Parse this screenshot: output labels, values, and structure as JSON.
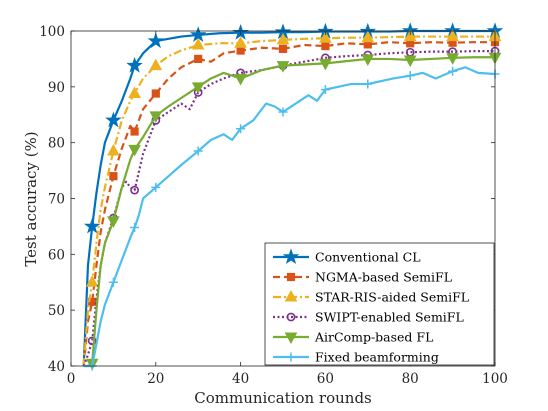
{
  "chart_data": {
    "type": "line",
    "xlabel": "Communication rounds",
    "ylabel": "Test accuracy (%)",
    "xlim": [
      0,
      100
    ],
    "ylim": [
      40,
      100
    ],
    "xticks": [
      "0",
      "20",
      "40",
      "60",
      "80",
      "100"
    ],
    "yticks": [
      "40",
      "50",
      "60",
      "70",
      "80",
      "90",
      "100"
    ],
    "grid": false,
    "legend_position": "bottom-right",
    "series": [
      {
        "name": "Conventional CL",
        "color": "#0072BD",
        "dash": "solid",
        "marker": "star",
        "x": [
          3,
          4,
          5,
          6,
          7,
          8,
          9,
          10,
          12,
          14,
          15,
          17,
          20,
          23,
          26,
          30,
          35,
          40,
          45,
          50,
          55,
          60,
          65,
          70,
          75,
          80,
          85,
          90,
          95,
          100
        ],
        "y": [
          40,
          58,
          65,
          71,
          76,
          80,
          82,
          84,
          87.5,
          91.5,
          93.8,
          96,
          98.2,
          98.6,
          99,
          99.3,
          99.6,
          99.7,
          99.7,
          99.8,
          99.8,
          99.9,
          99.9,
          99.9,
          99.9,
          100,
          100,
          100,
          100,
          100
        ],
        "marker_x": [
          5,
          10,
          15,
          20,
          30,
          40,
          50,
          60,
          70,
          80,
          90,
          100
        ],
        "marker_y": [
          65,
          84,
          93.8,
          98.2,
          99.3,
          99.7,
          99.8,
          99.9,
          99.9,
          100,
          100,
          100
        ]
      },
      {
        "name": "NGMA-based SemiFL",
        "color": "#D95319",
        "dash": "dashed",
        "marker": "square",
        "x": [
          3,
          4,
          5,
          6,
          7,
          8,
          10,
          12,
          14,
          15,
          17,
          20,
          23,
          26,
          30,
          33,
          36,
          40,
          45,
          50,
          55,
          60,
          65,
          70,
          75,
          80,
          85,
          90,
          95,
          100
        ],
        "y": [
          40,
          48,
          51.5,
          58,
          64,
          68,
          74,
          79,
          83,
          82,
          86,
          88.8,
          91.5,
          93.5,
          95,
          94.5,
          96,
          96.5,
          97,
          96.8,
          97.5,
          97.3,
          97.8,
          97.6,
          98,
          97.8,
          98,
          97.9,
          98,
          98
        ],
        "marker_x": [
          5,
          10,
          15,
          20,
          30,
          40,
          50,
          60,
          70,
          80,
          90,
          100
        ],
        "marker_y": [
          51.5,
          74,
          82,
          88.8,
          95,
          96.5,
          96.8,
          97.3,
          97.6,
          97.8,
          97.9,
          98
        ]
      },
      {
        "name": "STAR-RIS-aided SemiFL",
        "color": "#EDB120",
        "dash": "dashdot",
        "marker": "triangle-up",
        "x": [
          3,
          4,
          5,
          6,
          7,
          8,
          10,
          12,
          14,
          15,
          17,
          20,
          23,
          26,
          30,
          35,
          40,
          45,
          50,
          55,
          60,
          65,
          70,
          75,
          80,
          85,
          90,
          95,
          100
        ],
        "y": [
          40,
          50,
          55,
          62,
          68,
          72,
          78.5,
          84,
          87.5,
          88.8,
          91.5,
          93.8,
          95.5,
          96.5,
          97.5,
          97.8,
          97.8,
          98.2,
          98.4,
          98.6,
          98.7,
          98.8,
          98.8,
          98.9,
          99,
          99,
          99,
          99,
          99
        ],
        "marker_x": [
          5,
          10,
          15,
          20,
          30,
          40,
          50,
          60,
          70,
          80,
          90,
          100
        ],
        "marker_y": [
          55,
          78.5,
          88.8,
          93.8,
          97.5,
          97.8,
          98.4,
          98.7,
          98.8,
          99,
          99,
          99
        ]
      },
      {
        "name": "SWIPT-enabled SemiFL",
        "color": "#7E2F8E",
        "dash": "dotted",
        "marker": "circle",
        "x": [
          3,
          4,
          5,
          6,
          7,
          8,
          10,
          12,
          13,
          14,
          15,
          17,
          20,
          23,
          26,
          28,
          30,
          33,
          36,
          40,
          45,
          50,
          55,
          60,
          65,
          70,
          75,
          80,
          85,
          90,
          95,
          100
        ],
        "y": [
          40,
          42,
          44.5,
          52,
          58,
          62,
          66.5,
          72,
          73,
          72,
          71.5,
          78,
          84,
          85.5,
          87,
          86,
          89,
          90.5,
          91.5,
          92.5,
          93,
          93.8,
          94.5,
          95.2,
          95.5,
          95.7,
          96,
          96.2,
          96.3,
          96.3,
          96.4,
          96.4
        ],
        "marker_x": [
          5,
          10,
          15,
          20,
          30,
          40,
          50,
          60,
          70,
          80,
          90,
          100
        ],
        "marker_y": [
          44.5,
          66.5,
          71.5,
          84,
          89,
          92.5,
          93.8,
          95.2,
          95.7,
          96.2,
          96.3,
          96.4
        ]
      },
      {
        "name": "AirComp-based FL",
        "color": "#77AC30",
        "dash": "solid",
        "marker": "triangle-down",
        "x": [
          3,
          4,
          5,
          6,
          7,
          8,
          10,
          12,
          14,
          15,
          17,
          20,
          23,
          26,
          30,
          33,
          36,
          40,
          45,
          50,
          55,
          60,
          65,
          70,
          75,
          80,
          85,
          90,
          95,
          100
        ],
        "y": [
          40,
          40,
          40.5,
          50,
          58,
          62,
          66,
          72,
          77,
          78.8,
          81,
          84.8,
          86.5,
          88,
          90,
          91.5,
          92.5,
          91.5,
          93,
          93.8,
          94,
          94.2,
          94.6,
          95,
          95,
          94.8,
          95,
          95.2,
          95.3,
          95.3
        ],
        "marker_x": [
          5,
          10,
          15,
          20,
          30,
          40,
          50,
          60,
          70,
          80,
          90,
          100
        ],
        "marker_y": [
          40.5,
          66,
          78.8,
          84.8,
          90,
          91.5,
          93.8,
          94.2,
          95,
          94.8,
          95.2,
          95.3
        ]
      },
      {
        "name": "Fixed beamforming",
        "color": "#4DBEEE",
        "dash": "solid",
        "marker": "plus",
        "x": [
          3,
          4,
          5,
          6,
          7,
          8,
          10,
          12,
          14,
          15,
          16,
          17,
          20,
          23,
          26,
          30,
          33,
          36,
          38,
          40,
          43,
          46,
          48,
          50,
          53,
          56,
          58,
          60,
          63,
          66,
          70,
          73,
          76,
          80,
          83,
          86,
          90,
          93,
          96,
          100
        ],
        "y": [
          40,
          40,
          40,
          44,
          48,
          51,
          55,
          59,
          63,
          64.8,
          67,
          70,
          72,
          74,
          76,
          78.5,
          80.5,
          81.5,
          80.5,
          82.5,
          84,
          87,
          86.5,
          85.5,
          87,
          88.5,
          87.5,
          89.5,
          90,
          90.5,
          90.5,
          91,
          91.5,
          92,
          92.5,
          91.5,
          92.8,
          93.5,
          92.5,
          92.3
        ],
        "marker_x": [
          5,
          10,
          15,
          20,
          30,
          40,
          50,
          60,
          70,
          80,
          90,
          100
        ],
        "marker_y": [
          40,
          55,
          64.8,
          72,
          78.5,
          82.5,
          85.5,
          89.5,
          90.5,
          92,
          92.8,
          92.3
        ]
      }
    ]
  }
}
